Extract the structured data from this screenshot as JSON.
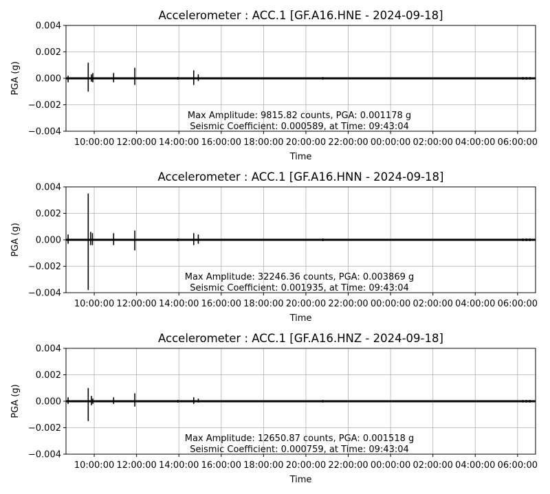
{
  "chart_data": [
    {
      "type": "line",
      "title": "Accelerometer : ACC.1  [GF.A16.HNE - 2024-09-18]",
      "xlabel": "Time",
      "ylabel": "PGA (g)",
      "ylim": [
        -0.004,
        0.004
      ],
      "grid": true,
      "y_ticks": [
        -0.004,
        -0.002,
        0.0,
        0.002,
        0.004
      ],
      "y_tick_labels": [
        "−0.004",
        "−0.002",
        "0.000",
        "0.002",
        "0.004"
      ],
      "x_tick_labels": [
        "10:00:00",
        "12:00:00",
        "14:00:00",
        "16:00:00",
        "18:00:00",
        "20:00:00",
        "22:00:00",
        "00:00:00",
        "02:00:00",
        "04:00:00",
        "06:00:00"
      ],
      "annotation": [
        "Max Amplitude: 9815.82 counts, PGA: 0.001178 g",
        "Seismic Coefficient: 0.000589, at Time: 09:43:04"
      ],
      "events": [
        {
          "t": "08:46",
          "max": 0.0002,
          "min": -0.0003
        },
        {
          "t": "09:43",
          "max": 0.00118,
          "min": -0.001
        },
        {
          "t": "09:52",
          "max": 0.0003,
          "min": -0.00025
        },
        {
          "t": "09:56",
          "max": 0.0004,
          "min": -0.0003
        },
        {
          "t": "10:55",
          "max": 0.0004,
          "min": -0.0003
        },
        {
          "t": "11:55",
          "max": 0.0008,
          "min": -0.0005
        },
        {
          "t": "13:57",
          "max": 0.0001,
          "min": -0.0001
        },
        {
          "t": "14:42",
          "max": 0.0006,
          "min": -0.0005
        },
        {
          "t": "14:55",
          "max": 0.0003,
          "min": -0.0002
        },
        {
          "t": "20:48",
          "max": 0.0001,
          "min": -0.0001
        },
        {
          "t": "06:15",
          "max": 0.0001,
          "min": -0.0001
        },
        {
          "t": "06:25",
          "max": 0.0001,
          "min": -0.0001
        },
        {
          "t": "06:35",
          "max": 0.0001,
          "min": -0.0001
        }
      ]
    },
    {
      "type": "line",
      "title": "Accelerometer : ACC.1  [GF.A16.HNN - 2024-09-18]",
      "xlabel": "Time",
      "ylabel": "PGA (g)",
      "ylim": [
        -0.004,
        0.004
      ],
      "grid": true,
      "y_ticks": [
        -0.004,
        -0.002,
        0.0,
        0.002,
        0.004
      ],
      "y_tick_labels": [
        "−0.004",
        "−0.002",
        "0.000",
        "0.002",
        "0.004"
      ],
      "x_tick_labels": [
        "10:00:00",
        "12:00:00",
        "14:00:00",
        "16:00:00",
        "18:00:00",
        "20:00:00",
        "22:00:00",
        "00:00:00",
        "02:00:00",
        "04:00:00",
        "06:00:00"
      ],
      "annotation": [
        "Max Amplitude: 32246.36 counts, PGA: 0.003869 g",
        "Seismic Coefficient: 0.001935, at Time: 09:43:04"
      ],
      "events": [
        {
          "t": "08:46",
          "max": 0.0004,
          "min": -0.0003
        },
        {
          "t": "09:43",
          "max": 0.0035,
          "min": -0.0038
        },
        {
          "t": "09:50",
          "max": 0.0006,
          "min": -0.0004
        },
        {
          "t": "09:55",
          "max": 0.0005,
          "min": -0.0004
        },
        {
          "t": "10:55",
          "max": 0.0005,
          "min": -0.0004
        },
        {
          "t": "11:55",
          "max": 0.0007,
          "min": -0.0008
        },
        {
          "t": "13:57",
          "max": 0.0001,
          "min": -0.0001
        },
        {
          "t": "14:42",
          "max": 0.0005,
          "min": -0.0004
        },
        {
          "t": "14:55",
          "max": 0.0004,
          "min": -0.0003
        },
        {
          "t": "20:48",
          "max": 0.0001,
          "min": -0.0001
        },
        {
          "t": "06:15",
          "max": 0.0001,
          "min": -0.0001
        },
        {
          "t": "06:25",
          "max": 0.0001,
          "min": -0.0001
        },
        {
          "t": "06:35",
          "max": 0.0001,
          "min": -0.0001
        }
      ]
    },
    {
      "type": "line",
      "title": "Accelerometer : ACC.1  [GF.A16.HNZ - 2024-09-18]",
      "xlabel": "Time",
      "ylabel": "PGA (g)",
      "ylim": [
        -0.004,
        0.004
      ],
      "grid": true,
      "y_ticks": [
        -0.004,
        -0.002,
        0.0,
        0.002,
        0.004
      ],
      "y_tick_labels": [
        "−0.004",
        "−0.002",
        "0.000",
        "0.002",
        "0.004"
      ],
      "x_tick_labels": [
        "10:00:00",
        "12:00:00",
        "14:00:00",
        "16:00:00",
        "18:00:00",
        "20:00:00",
        "22:00:00",
        "00:00:00",
        "02:00:00",
        "04:00:00",
        "06:00:00"
      ],
      "annotation": [
        "Max Amplitude: 12650.87 counts, PGA: 0.001518 g",
        "Seismic Coefficient: 0.000759, at Time: 09:43:04"
      ],
      "events": [
        {
          "t": "08:46",
          "max": 0.0003,
          "min": -0.0002
        },
        {
          "t": "09:43",
          "max": 0.001,
          "min": -0.0015
        },
        {
          "t": "09:52",
          "max": 0.0004,
          "min": -0.0003
        },
        {
          "t": "09:56",
          "max": 0.0002,
          "min": -0.0002
        },
        {
          "t": "10:55",
          "max": 0.0003,
          "min": -0.0002
        },
        {
          "t": "11:55",
          "max": 0.0006,
          "min": -0.0004
        },
        {
          "t": "13:57",
          "max": 0.0001,
          "min": -0.0001
        },
        {
          "t": "14:42",
          "max": 0.0003,
          "min": -0.0002
        },
        {
          "t": "14:55",
          "max": 0.0002,
          "min": -0.0001
        },
        {
          "t": "20:48",
          "max": 0.0001,
          "min": -0.0001
        },
        {
          "t": "06:15",
          "max": 0.0001,
          "min": -0.0001
        },
        {
          "t": "06:25",
          "max": 0.0001,
          "min": -0.0001
        },
        {
          "t": "06:35",
          "max": 0.0001,
          "min": -0.0001
        }
      ]
    }
  ]
}
